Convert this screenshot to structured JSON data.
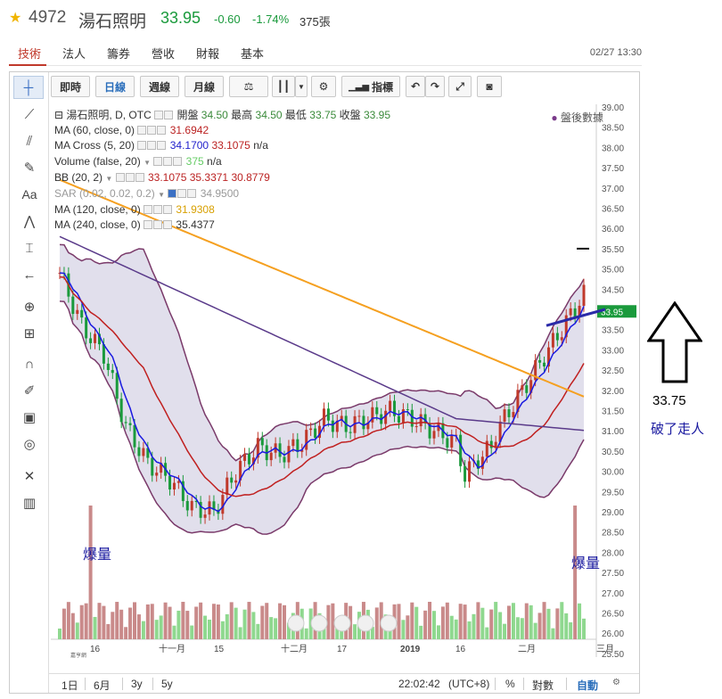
{
  "quote": {
    "code": "4972",
    "name": "湯石照明",
    "price": "33.95",
    "change": "-0.60",
    "change_pct": "-1.74%",
    "volume": "375張"
  },
  "tabs": [
    "技術",
    "法人",
    "籌券",
    "營收",
    "財報",
    "基本"
  ],
  "datetime": "02/27 13:30",
  "toolbar": {
    "realtime": "即時",
    "daily": "日線",
    "weekly": "週線",
    "monthly": "月線",
    "indicators": "指標"
  },
  "legend": {
    "main": {
      "label": "湯石照明, D, OTC",
      "open_l": "開盤",
      "open": "34.50",
      "high_l": "最高",
      "high": "34.50",
      "low_l": "最低",
      "low": "33.75",
      "close_l": "收盤",
      "close": "33.95"
    },
    "ma60": {
      "label": "MA (60, close, 0)",
      "value": "31.6942"
    },
    "macross": {
      "label": "MA Cross (5, 20)",
      "v1": "34.1700",
      "v2": "33.1075",
      "v3": "n/a"
    },
    "volume": {
      "label": "Volume (false, 20)",
      "v1": "375",
      "v2": "n/a"
    },
    "bb": {
      "label": "BB (20, 2)",
      "v1": "33.1075",
      "v2": "35.3371",
      "v3": "30.8779"
    },
    "sar": {
      "label": "SAR (0.02, 0.02, 0.2)",
      "value": "34.9500"
    },
    "ma120": {
      "label": "MA (120, close, 0)",
      "value": "31.9308"
    },
    "ma240": {
      "label": "MA (240, close, 0)",
      "value": "35.4377"
    }
  },
  "after_hours": "盤後數據",
  "price_axis": [
    "39.00",
    "38.50",
    "38.00",
    "37.50",
    "37.00",
    "36.50",
    "36.00",
    "35.50",
    "35.00",
    "34.50",
    "34.00",
    "33.50",
    "33.00",
    "32.50",
    "32.00",
    "31.50",
    "31.00",
    "30.50",
    "30.00",
    "29.50",
    "29.00",
    "28.50",
    "28.00",
    "27.50",
    "27.00",
    "26.50",
    "26.00",
    "25.50"
  ],
  "price_tag": "33.95",
  "time_axis": [
    "16",
    "十一月",
    "15",
    "十二月",
    "17",
    "2019",
    "16",
    "二月",
    "三月"
  ],
  "bottom_bar": {
    "ranges": [
      "1日",
      "6月",
      "3y",
      "5y"
    ],
    "clock": "22:02:42",
    "tz": "(UTC+8)",
    "pct": "%",
    "log": "對數",
    "auto": "自動"
  },
  "annotations": {
    "vol_burst_left": "爆量",
    "vol_burst_right": "爆量",
    "level": "33.75",
    "note": "破了走人"
  },
  "logo_text": "嘉亨網",
  "colors": {
    "up": "#1a9a3c",
    "down": "#c0392b",
    "ma60": "#c02020",
    "ma5": "#1a1ae0",
    "ma240": "#f5a020",
    "ma120": "#5a3a8a",
    "bb_fill": "#c9c4dc",
    "bb_line": "#7a3a6a"
  }
}
